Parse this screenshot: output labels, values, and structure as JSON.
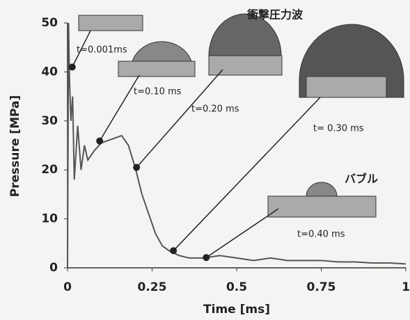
{
  "chart_data": {
    "type": "line",
    "title": "衝撃圧力波",
    "x_label": "Time [ms]",
    "y_label": "Pressure [MPa]",
    "x": [
      0,
      0.003,
      0.006,
      0.01,
      0.015,
      0.02,
      0.03,
      0.04,
      0.05,
      0.06,
      0.08,
      0.1,
      0.12,
      0.14,
      0.16,
      0.18,
      0.2,
      0.22,
      0.24,
      0.26,
      0.28,
      0.3,
      0.33,
      0.36,
      0.4,
      0.45,
      0.5,
      0.55,
      0.6,
      0.65,
      0.7,
      0.75,
      0.8,
      0.85,
      0.9,
      0.95,
      1
    ],
    "series": [
      {
        "color": "#555555",
        "values": [
          0,
          50,
          38,
          30,
          35,
          18,
          29,
          20,
          25,
          22,
          24,
          25.5,
          26,
          26.5,
          27,
          25,
          20.5,
          15,
          11,
          7,
          4.5,
          3.5,
          2.5,
          2,
          2,
          2.5,
          2,
          1.5,
          2,
          1.5,
          1.5,
          1.5,
          1.2,
          1.2,
          1,
          1,
          0.8
        ]
      }
    ],
    "xlim": [
      0,
      1
    ],
    "xticks": [
      0,
      0.25,
      0.5,
      0.75,
      1
    ],
    "ylim": [
      0,
      50
    ],
    "yticks": [
      0,
      10,
      20,
      30,
      40,
      50
    ],
    "annotations": [
      {
        "label": "t=0.001ms",
        "x": 0.014,
        "y": 41
      },
      {
        "label": "t=0.10 ms",
        "x": 0.095,
        "y": 25.9
      },
      {
        "label": "t=0.20 ms",
        "x": 0.204,
        "y": 20.5
      },
      {
        "label": "t= 0.30 ms",
        "x": 0.313,
        "y": 3.5
      },
      {
        "label": "t=0.40 ms",
        "x": 0.41,
        "y": 2.1
      }
    ],
    "bubble_label": "バブル"
  }
}
